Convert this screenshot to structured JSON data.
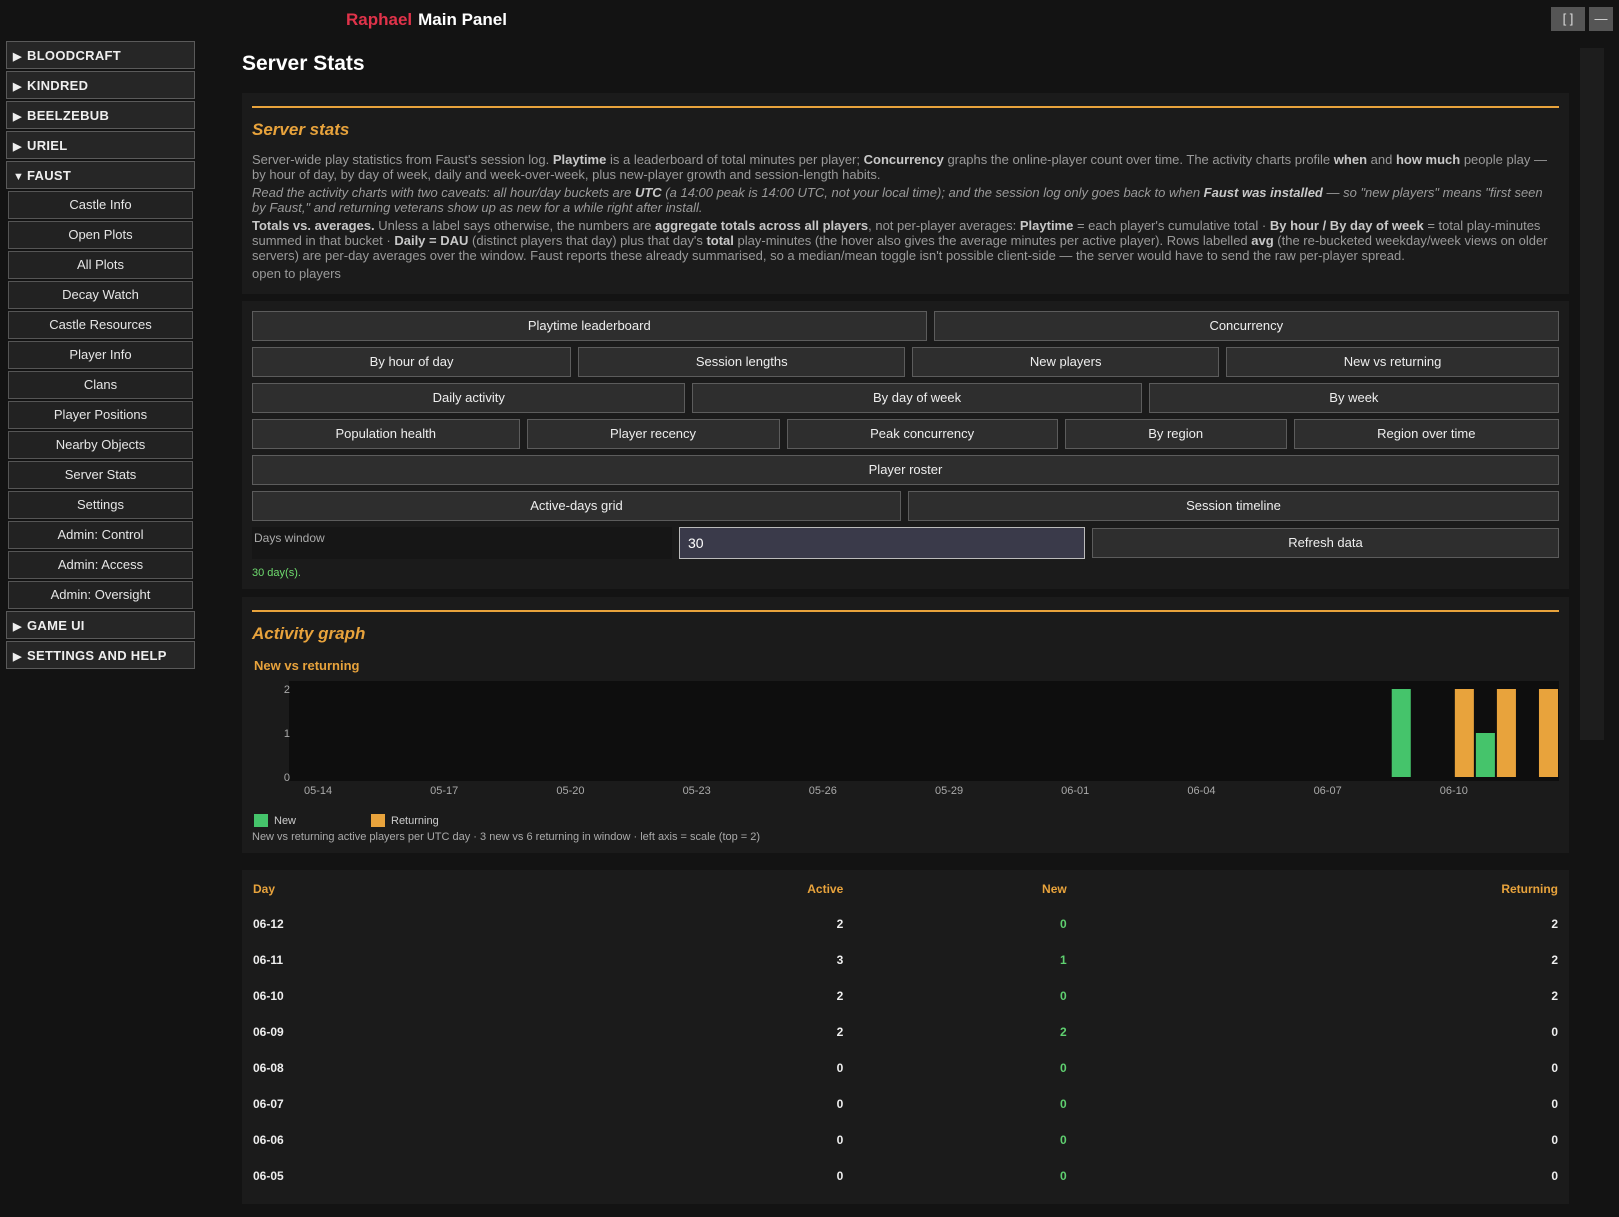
{
  "header": {
    "title_accent": "Raphael",
    "title": "Main Panel",
    "window_controls": [
      "[ ]",
      "—"
    ]
  },
  "sidebar": {
    "sections": [
      {
        "label": "BLOODCRAFT",
        "expanded": false
      },
      {
        "label": "KINDRED",
        "expanded": false
      },
      {
        "label": "BEELZEBUB",
        "expanded": false
      },
      {
        "label": "URIEL",
        "expanded": false
      },
      {
        "label": "FAUST",
        "expanded": true,
        "items": [
          "Castle Info",
          "Open Plots",
          "All Plots",
          "Decay Watch",
          "Castle Resources",
          "Player Info",
          "Clans",
          "Player Positions",
          "Nearby Objects",
          "Server Stats",
          "Settings",
          "Admin: Control",
          "Admin: Access",
          "Admin: Oversight"
        ]
      },
      {
        "label": "GAME UI",
        "expanded": false
      },
      {
        "label": "SETTINGS AND HELP",
        "expanded": false
      }
    ]
  },
  "main": {
    "title": "Server Stats"
  },
  "intro": {
    "heading": "Server stats",
    "paragraphs": [
      {
        "italic": false,
        "segments": [
          {
            "text": "Server-wide play statistics from Faust's session log. ",
            "bold": false
          },
          {
            "text": "Playtime",
            "bold": true
          },
          {
            "text": " is a leaderboard of total minutes per player; ",
            "bold": false
          },
          {
            "text": "Concurrency",
            "bold": true
          },
          {
            "text": " graphs the online-player count over time. The activity charts profile ",
            "bold": false
          },
          {
            "text": "when",
            "bold": true
          },
          {
            "text": " and ",
            "bold": false
          },
          {
            "text": "how much",
            "bold": true
          },
          {
            "text": " people play — by hour of day, by day of week, daily and week-over-week, plus new-player growth and session-length habits.",
            "bold": false
          }
        ]
      },
      {
        "italic": true,
        "segments": [
          {
            "text": "Read the activity charts with two caveats: all hour/day buckets are ",
            "bold": false
          },
          {
            "text": "UTC",
            "bold": true
          },
          {
            "text": " (a 14:00 peak is 14:00 UTC, not your local time); and the session log only goes back to when ",
            "bold": false
          },
          {
            "text": "Faust was installed",
            "bold": true
          },
          {
            "text": " — so \"new players\" means \"first seen by Faust,\" and returning veterans show up as new for a while right after install.",
            "bold": false
          }
        ]
      },
      {
        "italic": false,
        "segments": [
          {
            "text": "Totals vs. averages.",
            "bold": true
          },
          {
            "text": " Unless a label says otherwise, the numbers are ",
            "bold": false
          },
          {
            "text": "aggregate totals across all players",
            "bold": true
          },
          {
            "text": ", not per-player averages: ",
            "bold": false
          },
          {
            "text": "Playtime",
            "bold": true
          },
          {
            "text": " = each player's cumulative total · ",
            "bold": false
          },
          {
            "text": "By hour / By day of week",
            "bold": true
          },
          {
            "text": " = total play-minutes summed in that bucket · ",
            "bold": false
          },
          {
            "text": "Daily = DAU",
            "bold": true
          },
          {
            "text": " (distinct players that day) plus that day's ",
            "bold": false
          },
          {
            "text": "total",
            "bold": true
          },
          {
            "text": " play-minutes (the hover also gives the average minutes per active player). Rows labelled ",
            "bold": false
          },
          {
            "text": "avg",
            "bold": true
          },
          {
            "text": " (the re-bucketed weekday/week views on older servers) are per-day averages over the window. Faust reports these already summarised, so a median/mean toggle isn't possible client-side — the server would have to send the raw per-player spread.",
            "bold": false
          }
        ]
      },
      {
        "italic": false,
        "segments": [
          {
            "text": "open to players",
            "bold": false
          }
        ]
      }
    ]
  },
  "controls": {
    "button_rows": [
      [
        "Playtime leaderboard",
        "Concurrency"
      ],
      [
        "By hour of day",
        "Session lengths",
        "New players",
        "New vs returning"
      ],
      [
        "Daily activity",
        "By day of week",
        "By week"
      ],
      [
        "Population health",
        "Player recency",
        "Peak concurrency",
        "By region",
        "Region over time"
      ],
      [
        "Player roster"
      ],
      [
        "Active-days grid",
        "Session timeline"
      ]
    ],
    "days_label": "Days window",
    "days_value": "30",
    "refresh": "Refresh data",
    "status": "30 day(s)."
  },
  "activity": {
    "heading": "Activity graph",
    "chart": {
      "type": "bar",
      "title": "New vs returning",
      "categories": [
        "05-14",
        null,
        null,
        "05-17",
        null,
        null,
        "05-20",
        null,
        null,
        "05-23",
        null,
        null,
        "05-26",
        null,
        null,
        "05-29",
        null,
        null,
        "06-01",
        null,
        null,
        "06-04",
        null,
        null,
        "06-07",
        null,
        null,
        "06-10",
        null,
        null
      ],
      "series": [
        {
          "name": "New",
          "color": "#45c46b",
          "values": [
            0,
            0,
            0,
            0,
            0,
            0,
            0,
            0,
            0,
            0,
            0,
            0,
            0,
            0,
            0,
            0,
            0,
            0,
            0,
            0,
            0,
            0,
            0,
            0,
            0,
            0,
            2,
            0,
            1,
            0
          ]
        },
        {
          "name": "Returning",
          "color": "#e8a33c",
          "values": [
            0,
            0,
            0,
            0,
            0,
            0,
            0,
            0,
            0,
            0,
            0,
            0,
            0,
            0,
            0,
            0,
            0,
            0,
            0,
            0,
            0,
            0,
            0,
            0,
            0,
            0,
            0,
            2,
            2,
            2
          ]
        }
      ],
      "ylim": [
        0,
        2
      ],
      "yticks": [
        0,
        1,
        2
      ],
      "caption": "New vs returning active players per UTC day · 3 new vs 6 returning in window · left axis = scale (top = 2)"
    }
  },
  "table": {
    "columns": [
      "Day",
      "Active",
      "New",
      "Returning"
    ],
    "rows": [
      [
        "06-12",
        "2",
        "0",
        "2"
      ],
      [
        "06-11",
        "3",
        "1",
        "2"
      ],
      [
        "06-10",
        "2",
        "0",
        "2"
      ],
      [
        "06-09",
        "2",
        "2",
        "0"
      ],
      [
        "06-08",
        "0",
        "0",
        "0"
      ],
      [
        "06-07",
        "0",
        "0",
        "0"
      ],
      [
        "06-06",
        "0",
        "0",
        "0"
      ],
      [
        "06-05",
        "0",
        "0",
        "0"
      ]
    ]
  }
}
